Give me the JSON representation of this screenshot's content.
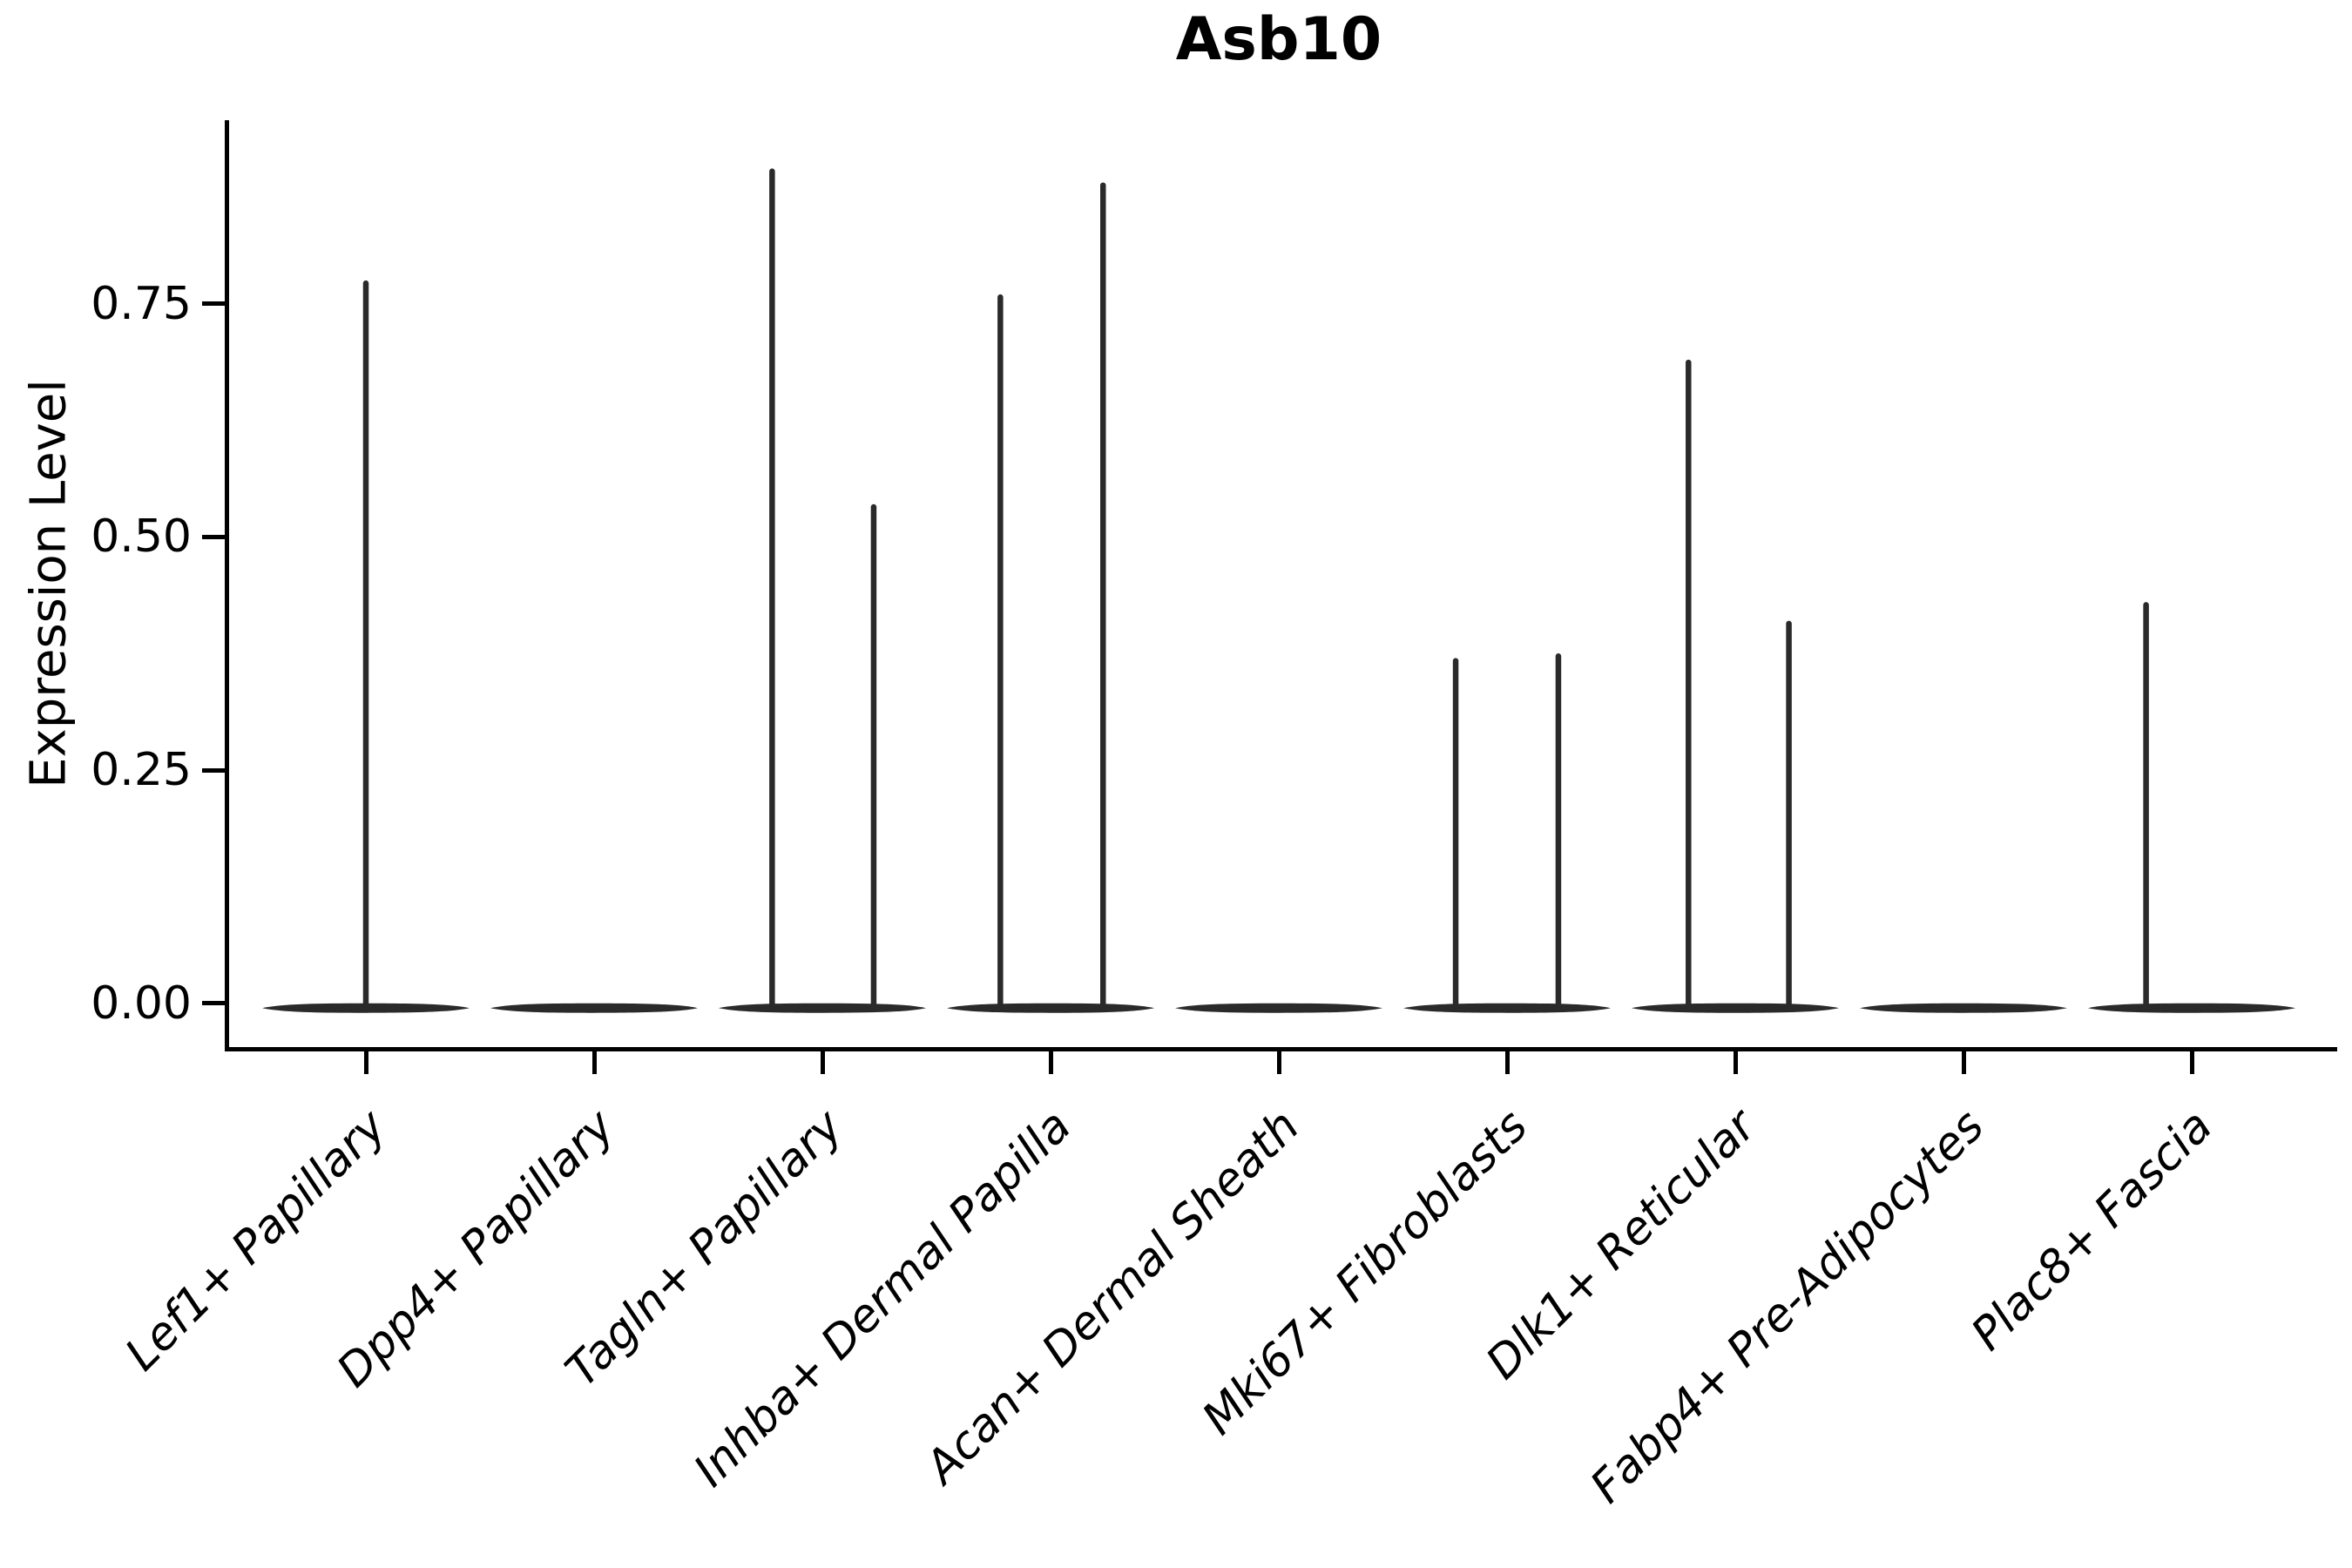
{
  "chart_data": {
    "type": "violin",
    "title": "Asb10",
    "ylabel": "Expression Level",
    "xlabel": "",
    "grid": false,
    "legend": null,
    "ytick_labels": [
      "0.00",
      "0.25",
      "0.50",
      "0.75"
    ],
    "ytick_values": [
      0.0,
      0.25,
      0.5,
      0.75
    ],
    "ylim": [
      -0.047,
      0.947
    ],
    "categories": [
      "Lef1+ Papillary",
      "Dpp4+ Papillary",
      "Tagln+ Papillary",
      "Inhba+ Dermal Papilla",
      "Acan+ Dermal Sheath",
      "Mki67+ Fibroblasts",
      "Dlk1+ Reticular",
      "Fabp4+ Pre-Adipocytes",
      "Plac8+ Fascia"
    ],
    "series": [
      {
        "name": "Lef1+ Papillary",
        "baseline_bulk": 0.0,
        "spikes": [
          {
            "offset_frac": 0.0,
            "max": 0.775
          }
        ]
      },
      {
        "name": "Dpp4+ Papillary",
        "baseline_bulk": 0.0,
        "spikes": []
      },
      {
        "name": "Tagln+ Papillary",
        "baseline_bulk": 0.0,
        "spikes": [
          {
            "offset_frac": -0.22,
            "max": 0.895
          },
          {
            "offset_frac": 0.225,
            "max": 0.535
          }
        ]
      },
      {
        "name": "Inhba+ Dermal Papilla",
        "baseline_bulk": 0.0,
        "spikes": [
          {
            "offset_frac": -0.22,
            "max": 0.76
          },
          {
            "offset_frac": 0.23,
            "max": 0.88
          }
        ]
      },
      {
        "name": "Acan+ Dermal Sheath",
        "baseline_bulk": 0.0,
        "spikes": []
      },
      {
        "name": "Mki67+ Fibroblasts",
        "baseline_bulk": 0.0,
        "spikes": [
          {
            "offset_frac": -0.225,
            "max": 0.37
          },
          {
            "offset_frac": 0.225,
            "max": 0.375
          }
        ]
      },
      {
        "name": "Dlk1+ Reticular",
        "baseline_bulk": 0.0,
        "spikes": [
          {
            "offset_frac": -0.205,
            "max": 0.69
          },
          {
            "offset_frac": 0.235,
            "max": 0.41
          }
        ]
      },
      {
        "name": "Fabp4+ Pre-Adipocytes",
        "baseline_bulk": 0.0,
        "spikes": []
      },
      {
        "name": "Plac8+ Fascia",
        "baseline_bulk": 0.0,
        "spikes": [
          {
            "offset_frac": -0.2,
            "max": 0.43
          }
        ]
      }
    ],
    "violin_color": "#2a2a2a",
    "axis_color": "#000000",
    "background_color": "#ffffff"
  }
}
